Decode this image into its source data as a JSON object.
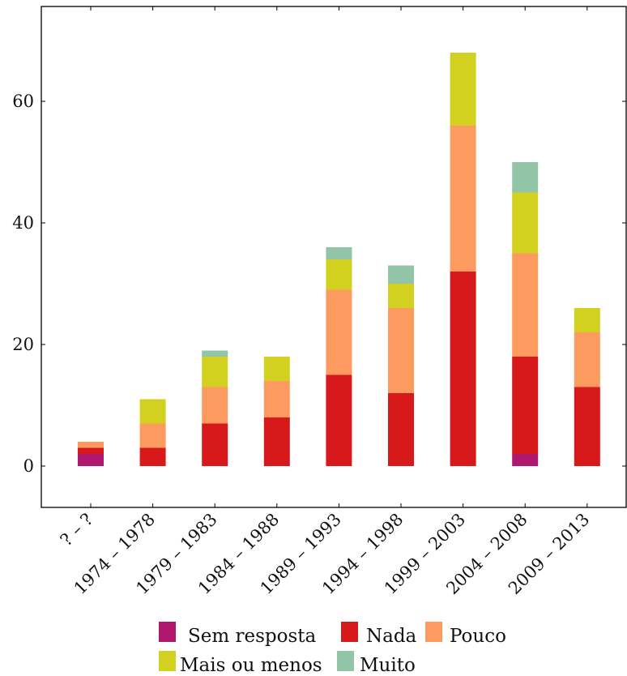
{
  "chart_data": {
    "type": "bar",
    "stacked": true,
    "categories": [
      "? – ?",
      "1974 – 1978",
      "1979 – 1983",
      "1984 – 1988",
      "1989 – 1993",
      "1994 – 1998",
      "1999 – 2003",
      "2004 – 2008",
      "2009 – 2013"
    ],
    "series": [
      {
        "name": "Sem resposta",
        "color": "#b0176f",
        "values": [
          2,
          0,
          0,
          0,
          0,
          0,
          0,
          2,
          0
        ]
      },
      {
        "name": "Nada",
        "color": "#d7191c",
        "values": [
          1,
          3,
          7,
          8,
          15,
          12,
          32,
          16,
          13
        ]
      },
      {
        "name": "Pouco",
        "color": "#fd9a5f",
        "values": [
          1,
          4,
          6,
          6,
          14,
          14,
          24,
          17,
          9
        ]
      },
      {
        "name": "Mais ou menos",
        "color": "#d3d11f",
        "values": [
          0,
          4,
          5,
          4,
          5,
          4,
          12,
          10,
          4
        ]
      },
      {
        "name": "Muito",
        "color": "#92c5a8",
        "values": [
          0,
          0,
          1,
          0,
          2,
          3,
          0,
          5,
          0
        ]
      }
    ],
    "ylim": [
      -7,
      75
    ],
    "yticks": [
      0,
      20,
      40,
      60
    ],
    "title": "",
    "xlabel": "",
    "ylabel": "",
    "grid": false,
    "legend_position": "bottom"
  }
}
